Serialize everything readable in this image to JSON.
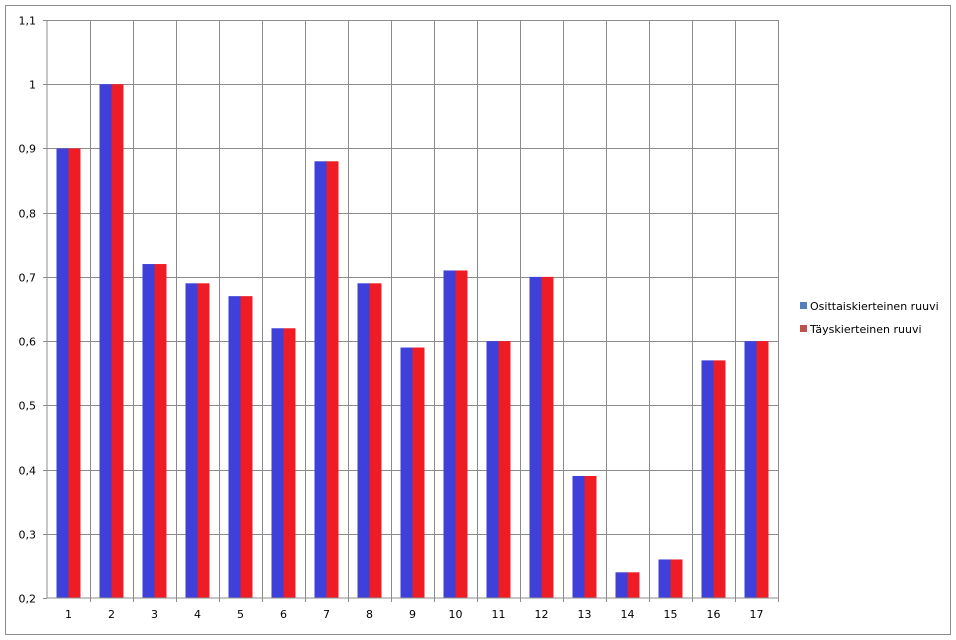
{
  "chart_data": {
    "type": "bar",
    "categories": [
      "1",
      "2",
      "3",
      "4",
      "5",
      "6",
      "7",
      "8",
      "9",
      "10",
      "11",
      "12",
      "13",
      "14",
      "15",
      "16",
      "17"
    ],
    "series": [
      {
        "name": "Osittaiskierteinen ruuvi",
        "color": "#3f3fd9",
        "legend_color": "#4f81bd",
        "values": [
          0.9,
          1.0,
          0.72,
          0.69,
          0.67,
          0.62,
          0.88,
          0.69,
          0.59,
          0.71,
          0.6,
          0.7,
          0.39,
          0.24,
          0.26,
          0.57,
          0.6
        ]
      },
      {
        "name": "Täyskierteinen ruuvi",
        "color": "#ee1c25",
        "legend_color": "#c0504d",
        "values": [
          0.9,
          1.0,
          0.72,
          0.69,
          0.67,
          0.62,
          0.88,
          0.69,
          0.59,
          0.71,
          0.6,
          0.7,
          0.39,
          0.24,
          0.26,
          0.57,
          0.6
        ]
      }
    ],
    "y_ticks": [
      "0,2",
      "0,3",
      "0,4",
      "0,5",
      "0,6",
      "0,7",
      "0,8",
      "0,9",
      "1",
      "1,1"
    ],
    "ylim": [
      0.2,
      1.1
    ],
    "grid": "both",
    "legend_position": "right"
  }
}
